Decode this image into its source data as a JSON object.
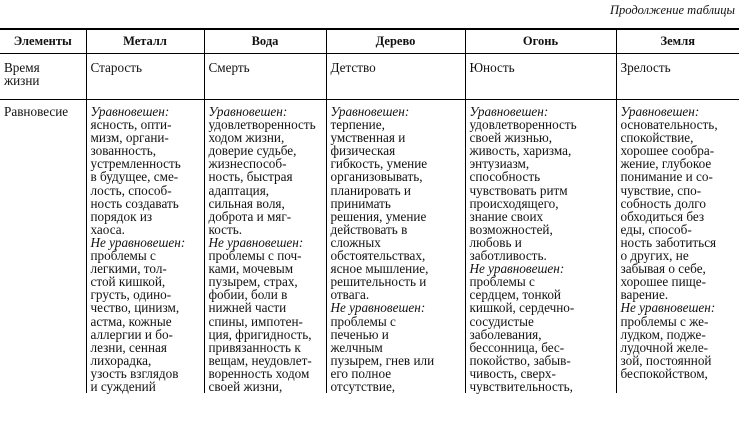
{
  "caption": "Продолжение таблицы",
  "table": {
    "header": [
      "Элементы",
      "Металл",
      "Вода",
      "Дерево",
      "Огонь",
      "Земля"
    ],
    "rows": [
      {
        "label": "Время жизни",
        "cells": [
          "Старость",
          "Смерть",
          "Детство",
          "Юность",
          "Зрелость"
        ]
      },
      {
        "label": "Равновесие",
        "cells": [
          {
            "balanced": {
              "label": "Уравновешен:",
              "lines": [
                "ясность, опти-",
                "мизм, органи-",
                "зованность,",
                "устремленность",
                "в будущее, сме-",
                "лость, способ-",
                "ность создавать",
                "порядок из",
                "хаоса."
              ]
            },
            "unbalanced": {
              "label": "Не уравновешен:",
              "lines": [
                "проблемы с",
                "легкими, тол-",
                "стой кишкой,",
                "грусть, одино-",
                "чество, цинизм,",
                "астма, кожные",
                "аллергии и бо-",
                "лезни, сенная",
                "лихорадка,",
                "узость взглядов",
                "и суждений"
              ]
            }
          },
          {
            "balanced": {
              "label": "Уравновешен:",
              "lines": [
                "удовлетворенность",
                "ходом жизни,",
                "доверие судьбе,",
                "жизнеспособ-",
                "ность, быстрая",
                "адаптация,",
                "сильная воля,",
                "доброта и мяг-",
                "кость."
              ]
            },
            "unbalanced": {
              "label": "Не уравновешен:",
              "lines": [
                "проблемы с поч-",
                "ками, мочевым",
                "пузырем, страх,",
                "фобии, боли в",
                "нижней части",
                "спины, импотен-",
                "ция, фригидность,",
                "привязанность к",
                "вещам, неудовлет-",
                "воренность ходом",
                "своей жизни,"
              ]
            }
          },
          {
            "balanced": {
              "label": "Уравновешен:",
              "lines": [
                "терпение,",
                "умственная и",
                "физическая",
                "гибкость, умение",
                "организовывать,",
                "планировать и",
                "принимать",
                "решения, умение",
                "действовать в",
                "сложных",
                "обстоятельствах,",
                "ясное мышление,",
                "решительность и",
                "отвага."
              ]
            },
            "unbalanced": {
              "label": "Не уравновешен:",
              "lines": [
                "проблемы с",
                "печенью и",
                "желчным",
                "пузырем, гнев или",
                "его полное",
                "отсутствие,"
              ]
            }
          },
          {
            "balanced": {
              "label": "Уравновешен:",
              "lines": [
                "удовлетворенность",
                "своей жизнью,",
                "живость, харизма,",
                "энтузиазм,",
                "способность",
                "чувствовать ритм",
                "происходящего,",
                "знание своих",
                "возможностей,",
                "любовь и",
                "заботливость."
              ]
            },
            "unbalanced": {
              "label": "Не уравновешен:",
              "lines": [
                "проблемы с",
                "сердцем, тонкой",
                "кишкой, сердечно-",
                "сосудистые",
                "заболевания,",
                "бессонница, бес-",
                "покойство, забыв-",
                "чивость, сверх-",
                "чувствительность,"
              ]
            }
          },
          {
            "balanced": {
              "label": "Уравновешен:",
              "lines": [
                "основательность,",
                "спокойствие,",
                "хорошее сообра-",
                "жение, глубокое",
                "понимание и со-",
                "чувствие, спо-",
                "собность долго",
                "обходиться без",
                "еды, способ-",
                "ность заботиться",
                "о других, не",
                "забывая о себе,",
                "хорошее пище-",
                "варение."
              ]
            },
            "unbalanced": {
              "label": "Не уравновешен:",
              "lines": [
                "проблемы с же-",
                "лудком, подже-",
                "лудочной желе-",
                "зой, постоянной",
                "беспокойством,"
              ]
            }
          }
        ]
      }
    ]
  }
}
